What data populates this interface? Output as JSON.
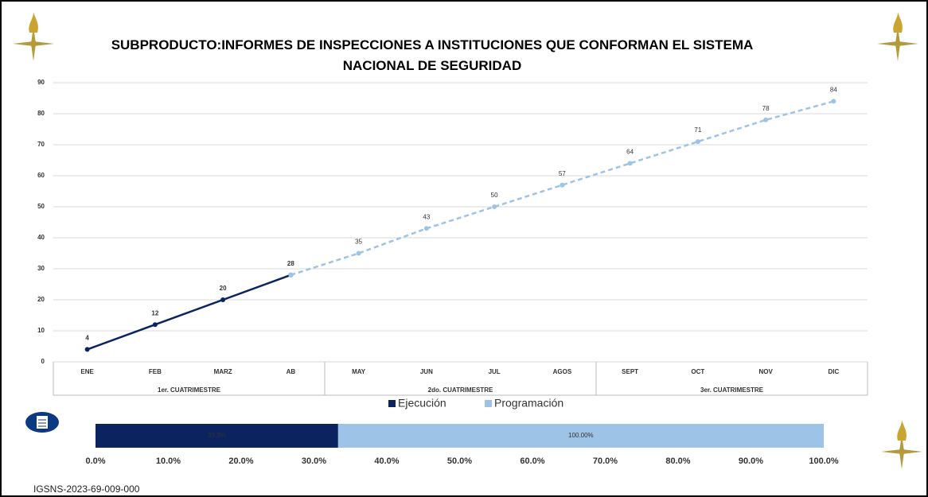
{
  "chart_data": [
    {
      "type": "line",
      "title": "SUBPRODUCTO:INFORMES DE INSPECCIONES A INSTITUCIONES QUE CONFORMAN EL SISTEMA NACIONAL DE SEGURIDAD",
      "categories": [
        "ENE",
        "FEB",
        "MARZ",
        "AB",
        "MAY",
        "JUN",
        "JUL",
        "AGOS",
        "SEPT",
        "OCT",
        "NOV",
        "DIC"
      ],
      "groups": [
        {
          "label": "1er. CUATRIMESTRE",
          "span": 4
        },
        {
          "label": "2do. CUATRIMESTRE",
          "span": 4
        },
        {
          "label": "3er. CUATRIMESTRE",
          "span": 4
        }
      ],
      "series": [
        {
          "name": "Ejecución",
          "color": "#0b2460",
          "dashed": false,
          "values": [
            4,
            12,
            20,
            28,
            null,
            null,
            null,
            null,
            null,
            null,
            null,
            null
          ],
          "labeled": [
            true,
            true,
            true,
            true,
            false,
            false,
            false,
            false,
            false,
            false,
            false,
            false
          ]
        },
        {
          "name": "Programación",
          "color": "#9dc3e6",
          "dashed": true,
          "values": [
            null,
            null,
            null,
            28,
            35,
            43,
            50,
            57,
            64,
            71,
            78,
            84
          ],
          "labeled": [
            false,
            false,
            false,
            false,
            true,
            true,
            true,
            true,
            true,
            true,
            true,
            true
          ]
        }
      ],
      "ylim": [
        0,
        90
      ],
      "yticks": [
        0,
        10,
        20,
        30,
        40,
        50,
        60,
        70,
        80,
        90
      ],
      "grid": true
    },
    {
      "type": "hbar-overlap",
      "series": [
        {
          "name": "Programación",
          "color": "#9dc3e6",
          "values": [
            100
          ],
          "value_labels": [
            "100.00%"
          ],
          "label_color": "#6b7f95"
        },
        {
          "name": "Ejecución",
          "color": "#0b2460",
          "values": [
            33.3
          ],
          "value_labels": [
            "33.3%"
          ],
          "label_color": "#ffffff"
        }
      ],
      "xlim": [
        0,
        100
      ],
      "xticks": [
        {
          "value": 0,
          "label": "0.0%"
        },
        {
          "value": 10,
          "label": "10.0%"
        },
        {
          "value": 20,
          "label": "20.0%"
        },
        {
          "value": 30,
          "label": "30.0%"
        },
        {
          "value": 40,
          "label": "40.0%"
        },
        {
          "value": 50,
          "label": "50.0%"
        },
        {
          "value": 60,
          "label": "60.0%"
        },
        {
          "value": 70,
          "label": "70.0%"
        },
        {
          "value": 80,
          "label": "80.0%"
        },
        {
          "value": 90,
          "label": "90.0%"
        },
        {
          "value": 100,
          "label": "100.0%"
        }
      ]
    }
  ],
  "footer": "IGSNS-2023-69-009-000"
}
